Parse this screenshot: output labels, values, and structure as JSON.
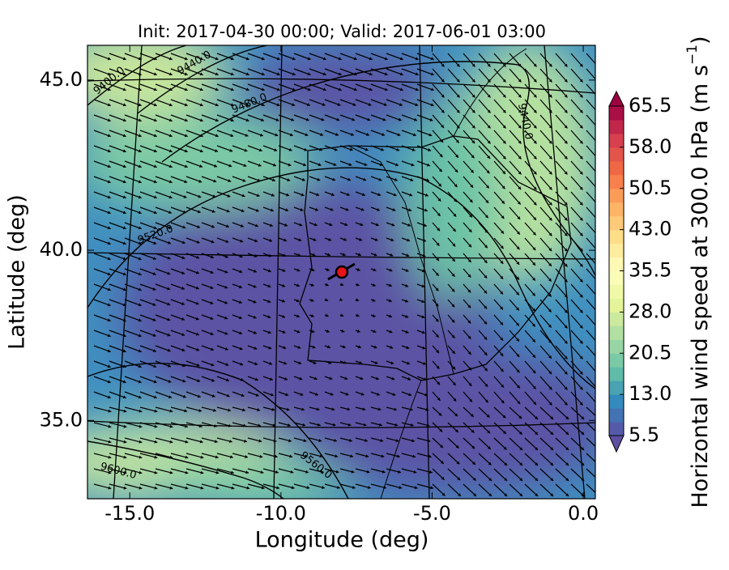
{
  "title": "Init: 2017-04-30 00:00; Valid: 2017-06-01 03:00",
  "x_axis": {
    "label": "Longitude (deg)",
    "lim": [
      -16.4,
      0.4
    ],
    "ticks": [
      {
        "value": -15,
        "label": "-15.0"
      },
      {
        "value": -10,
        "label": "-10.0"
      },
      {
        "value": -5,
        "label": "-5.0"
      },
      {
        "value": 0,
        "label": "0.0"
      }
    ]
  },
  "y_axis": {
    "label": "Latitude (deg)",
    "lim": [
      32.7,
      46.02
    ],
    "ticks": [
      {
        "value": 35,
        "label": "35.0"
      },
      {
        "value": 40,
        "label": "40.0"
      },
      {
        "value": 45,
        "label": "45.0"
      }
    ]
  },
  "colorbar": {
    "label": "Horizontal wind speed at 300.0 hPa (m s",
    "label_exponent": "−1",
    "label_end": ")",
    "lim": [
      5.5,
      65.5
    ],
    "ticks": [
      5.5,
      {
        "value": 13,
        "label": "13.0"
      },
      20.5,
      {
        "value": 28,
        "label": "28.0"
      },
      35.5,
      {
        "value": 43,
        "label": "43.0"
      },
      50.5,
      {
        "value": 58,
        "label": "58.0"
      },
      65.5
    ]
  },
  "contour_labels": [
    "9400.0",
    "9440.0",
    "9480.0",
    "9520.0",
    "9560.0",
    "9600.0",
    "9440.0"
  ]
}
